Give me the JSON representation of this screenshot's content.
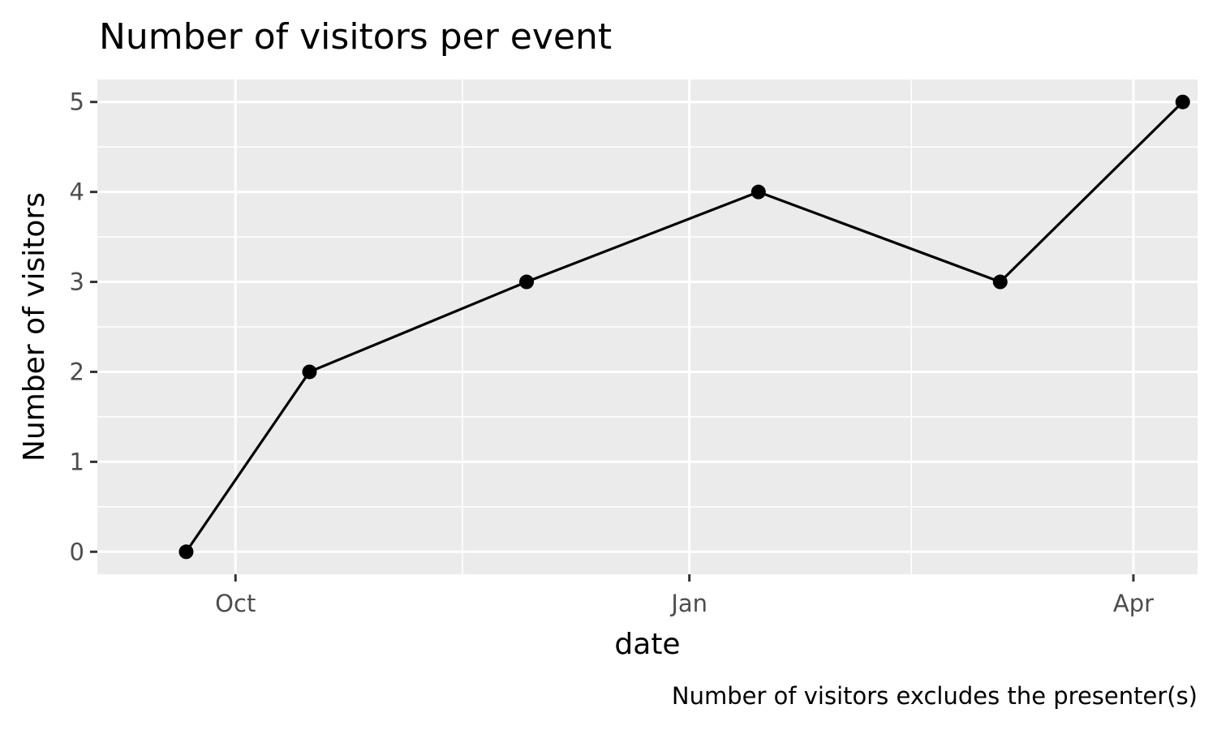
{
  "chart_data": {
    "type": "line",
    "title": "Number of visitors per event",
    "xlabel": "date",
    "ylabel": "Number of visitors",
    "caption": "Number of visitors excludes the presenter(s)",
    "x_type": "date",
    "xlim": [
      "2020-09-03",
      "2021-04-14"
    ],
    "ylim": [
      -0.25,
      5.25
    ],
    "x_ticks": [
      {
        "date": "2020-10-01",
        "label": "Oct"
      },
      {
        "date": "2021-01-01",
        "label": "Jan"
      },
      {
        "date": "2021-04-01",
        "label": "Apr"
      }
    ],
    "x_minor_ticks": [
      "2020-11-16",
      "2021-02-15"
    ],
    "y_ticks": [
      0,
      1,
      2,
      3,
      4,
      5
    ],
    "y_minor_ticks": [
      0.5,
      1.5,
      2.5,
      3.5,
      4.5
    ],
    "grid": true,
    "legend": "none",
    "series": [
      {
        "x": [
          "2020-09-21",
          "2020-10-16",
          "2020-11-29",
          "2021-01-15",
          "2021-03-05",
          "2021-04-11"
        ],
        "y": [
          0,
          2,
          3,
          4,
          3,
          5
        ]
      }
    ],
    "colors": {
      "panel": "#ebebeb",
      "grid": "#ffffff",
      "line": "#000000",
      "tick_text": "#4d4d4d"
    }
  }
}
